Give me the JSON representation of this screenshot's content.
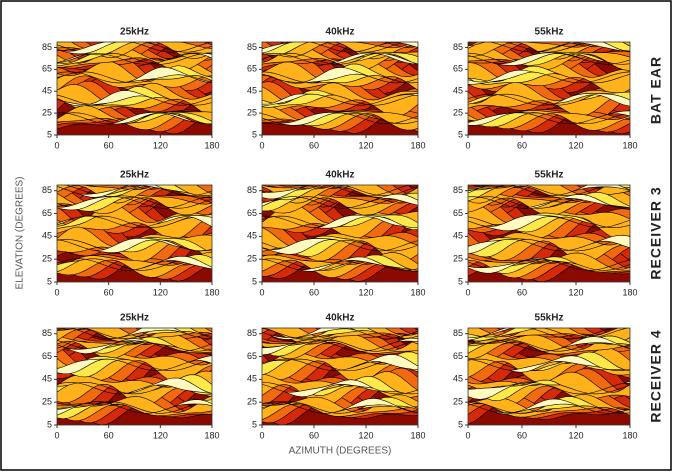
{
  "figure": {
    "ylabel": "ELEVATION (DEGREES)",
    "xlabel": "AZIMUTH (DEGREES)",
    "rows": [
      "BAT EAR",
      "RECEIVER 3",
      "RECEIVER 4"
    ]
  },
  "chart_data": [
    {
      "type": "heatmap",
      "title": "25kHz",
      "xlim": [
        0,
        180
      ],
      "ylim": [
        5,
        90
      ],
      "xticks": [
        0,
        60,
        120,
        180
      ],
      "yticks": [
        5,
        25,
        45,
        65,
        85
      ]
    },
    {
      "type": "heatmap",
      "title": "40kHz",
      "xlim": [
        0,
        180
      ],
      "ylim": [
        5,
        90
      ],
      "xticks": [
        0,
        60,
        120,
        180
      ],
      "yticks": [
        5,
        25,
        45,
        65,
        85
      ]
    },
    {
      "type": "heatmap",
      "title": "55kHz",
      "xlim": [
        0,
        180
      ],
      "ylim": [
        5,
        90
      ],
      "xticks": [
        0,
        60,
        120,
        180
      ],
      "yticks": [
        5,
        25,
        45,
        65,
        85
      ]
    },
    {
      "type": "heatmap",
      "title": "25kHz",
      "xlim": [
        0,
        180
      ],
      "ylim": [
        5,
        90
      ],
      "xticks": [
        0,
        60,
        120,
        180
      ],
      "yticks": [
        5,
        25,
        45,
        65,
        85
      ]
    },
    {
      "type": "heatmap",
      "title": "40kHz",
      "xlim": [
        0,
        180
      ],
      "ylim": [
        5,
        90
      ],
      "xticks": [
        0,
        60,
        120,
        180
      ],
      "yticks": [
        5,
        25,
        45,
        65,
        85
      ]
    },
    {
      "type": "heatmap",
      "title": "55kHz",
      "xlim": [
        0,
        180
      ],
      "ylim": [
        5,
        90
      ],
      "xticks": [
        0,
        60,
        120,
        180
      ],
      "yticks": [
        5,
        25,
        45,
        65,
        85
      ]
    },
    {
      "type": "heatmap",
      "title": "25kHz",
      "xlim": [
        0,
        180
      ],
      "ylim": [
        5,
        90
      ],
      "xticks": [
        0,
        60,
        120,
        180
      ],
      "yticks": [
        5,
        25,
        45,
        65,
        85
      ]
    },
    {
      "type": "heatmap",
      "title": "40kHz",
      "xlim": [
        0,
        180
      ],
      "ylim": [
        5,
        90
      ],
      "xticks": [
        0,
        60,
        120,
        180
      ],
      "yticks": [
        5,
        25,
        45,
        65,
        85
      ]
    },
    {
      "type": "heatmap",
      "title": "55kHz",
      "xlim": [
        0,
        180
      ],
      "ylim": [
        5,
        90
      ],
      "xticks": [
        0,
        60,
        120,
        180
      ],
      "yticks": [
        5,
        25,
        45,
        65,
        85
      ]
    }
  ]
}
